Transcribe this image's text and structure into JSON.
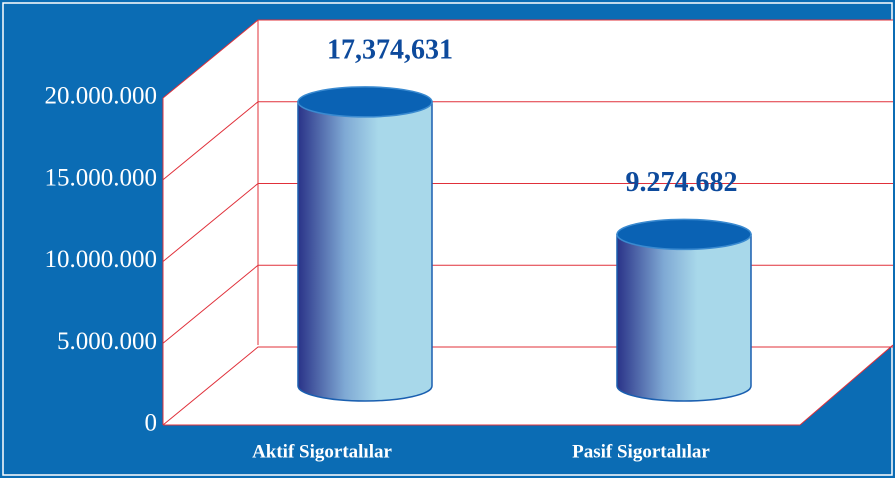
{
  "chart_data": {
    "type": "bar",
    "categories": [
      "Aktif Sigortalılar",
      "Pasif Sigortalılar"
    ],
    "values": [
      17374631,
      9274682
    ],
    "value_labels": [
      "17,374,631",
      "9.274.682"
    ],
    "ylim": [
      0,
      20000000
    ],
    "yticks": [
      0,
      {
        "value": 5000000,
        "label": "5.000.000"
      },
      {
        "value": 10000000,
        "label": "10.000.000"
      },
      {
        "value": 15000000,
        "label": "15.000.000"
      },
      {
        "value": 20000000,
        "label": "20.000.000"
      }
    ],
    "grid": true,
    "color": "#a8d8ea"
  }
}
